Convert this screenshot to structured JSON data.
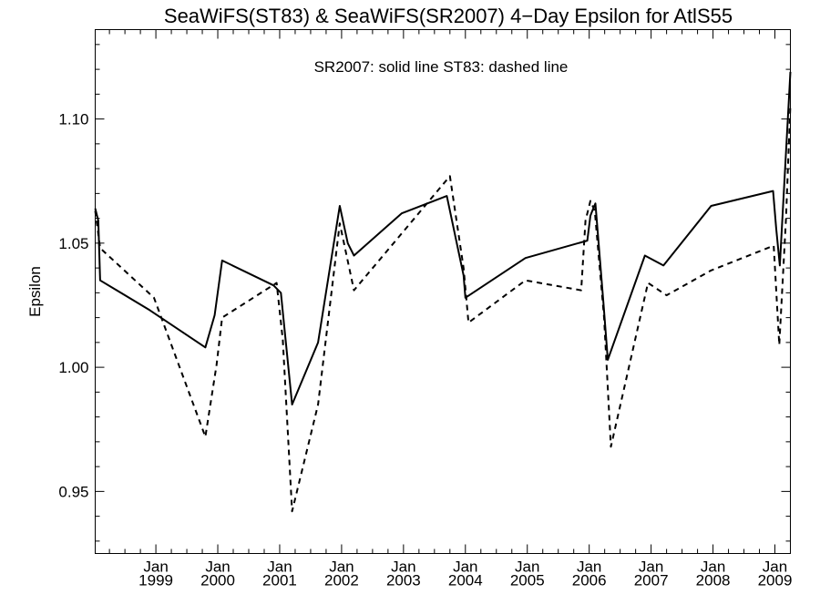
{
  "chart_data": {
    "type": "line",
    "title": "SeaWiFS(ST83) & SeaWiFS(SR2007) 4−Day Epsilon for AtlS55",
    "annotation": "SR2007: solid line   ST83: dashed line",
    "xlabel": "",
    "ylabel": "Epsilon",
    "xlim": [
      1998.02,
      2009.25
    ],
    "ylim": [
      0.925,
      1.136
    ],
    "ytick_values": [
      0.95,
      1.0,
      1.05,
      1.1
    ],
    "ytick_labels": [
      "0.95",
      "1.00",
      "1.05",
      "1.10"
    ],
    "ytick_minor": [
      0.93,
      0.94,
      0.96,
      0.97,
      0.98,
      0.99,
      1.01,
      1.02,
      1.03,
      1.04,
      1.06,
      1.07,
      1.08,
      1.09,
      1.11,
      1.12,
      1.13
    ],
    "xticks": [
      {
        "value": 1999.0,
        "month": "Jan",
        "year": "1999"
      },
      {
        "value": 2000.0,
        "month": "Jan",
        "year": "2000"
      },
      {
        "value": 2001.0,
        "month": "Jan",
        "year": "2001"
      },
      {
        "value": 2002.0,
        "month": "Jan",
        "year": "2002"
      },
      {
        "value": 2003.0,
        "month": "Jan",
        "year": "2003"
      },
      {
        "value": 2004.0,
        "month": "Jan",
        "year": "2004"
      },
      {
        "value": 2005.0,
        "month": "Jan",
        "year": "2005"
      },
      {
        "value": 2006.0,
        "month": "Jan",
        "year": "2006"
      },
      {
        "value": 2007.0,
        "month": "Jan",
        "year": "2007"
      },
      {
        "value": 2008.0,
        "month": "Jan",
        "year": "2008"
      },
      {
        "value": 2009.0,
        "month": "Jan",
        "year": "2009"
      }
    ],
    "xtick_minor_months": [
      3,
      6,
      9
    ],
    "series": [
      {
        "style": "solid",
        "x": [
          1998.02,
          1998.07,
          1998.1,
          1998.9,
          1999.8,
          1999.95,
          2000.07,
          2000.9,
          2001.02,
          2001.2,
          2001.62,
          2001.97,
          2002.1,
          2002.2,
          2002.97,
          2003.7,
          2003.97,
          2004.0,
          2004.97,
          2005.97,
          2006.02,
          2006.05,
          2006.1,
          2006.23,
          2006.3,
          2006.9,
          2007.2,
          2007.97,
          2008.97,
          2009.02,
          2009.08,
          2009.25
        ],
        "y": [
          1.064,
          1.059,
          1.035,
          1.023,
          1.008,
          1.021,
          1.043,
          1.033,
          1.03,
          0.985,
          1.01,
          1.065,
          1.05,
          1.045,
          1.062,
          1.069,
          1.037,
          1.028,
          1.044,
          1.051,
          1.061,
          1.063,
          1.066,
          1.026,
          1.003,
          1.045,
          1.041,
          1.065,
          1.071,
          1.056,
          1.041,
          1.119
        ]
      },
      {
        "style": "dashed",
        "x": [
          1998.02,
          1998.1,
          1998.97,
          1999.8,
          1999.98,
          2000.07,
          2000.95,
          2001.05,
          2001.2,
          2001.62,
          2001.97,
          2002.2,
          2003.75,
          2003.97,
          2004.05,
          2004.97,
          2005.87,
          2005.94,
          2006.02,
          2006.09,
          2006.24,
          2006.35,
          2006.95,
          2007.25,
          2007.97,
          2008.98,
          2009.07,
          2009.18,
          2009.25
        ],
        "y": [
          1.063,
          1.048,
          1.028,
          0.972,
          1.001,
          1.02,
          1.034,
          1.011,
          0.942,
          0.985,
          1.058,
          1.031,
          1.077,
          1.04,
          1.018,
          1.035,
          1.031,
          1.059,
          1.067,
          1.063,
          1.02,
          0.968,
          1.034,
          1.029,
          1.039,
          1.049,
          1.009,
          1.06,
          1.106
        ]
      }
    ]
  }
}
